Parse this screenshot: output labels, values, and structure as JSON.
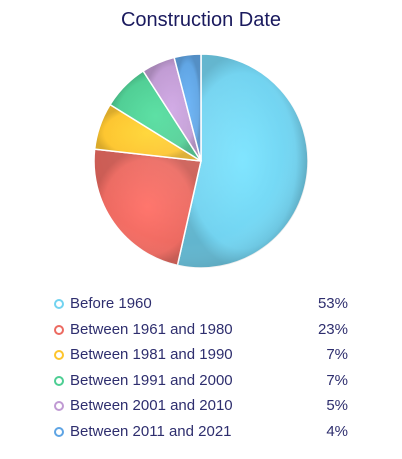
{
  "chart_data": {
    "type": "pie",
    "title": "Construction Date",
    "categories": [
      "Before 1960",
      "Between 1961 and 1980",
      "Between 1981 and 1990",
      "Between 1991 and 2000",
      "Between 2001 and 2010",
      "Between 2011 and 2021"
    ],
    "values": [
      53,
      23,
      7,
      7,
      5,
      4
    ],
    "value_labels": [
      "53%",
      "23%",
      "7%",
      "7%",
      "5%",
      "4%"
    ],
    "colors": [
      "#72d3f0",
      "#ec6a61",
      "#fdc52d",
      "#4dce93",
      "#c09ad3",
      "#5ea4e4"
    ],
    "legend_position": "bottom",
    "start_angle_deg": 0,
    "direction": "clockwise"
  }
}
